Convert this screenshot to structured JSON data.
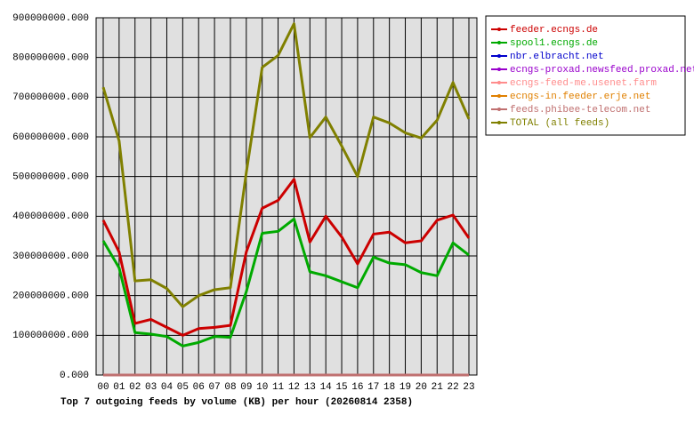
{
  "chart_data": {
    "type": "line",
    "title": "Top 7 outgoing feeds by volume (KB) per hour (20260814 2358)",
    "categories": [
      "00",
      "01",
      "02",
      "03",
      "04",
      "05",
      "06",
      "07",
      "08",
      "09",
      "10",
      "11",
      "12",
      "13",
      "14",
      "15",
      "16",
      "17",
      "18",
      "19",
      "20",
      "21",
      "22",
      "23"
    ],
    "series": [
      {
        "name": "feeder.ecngs.de",
        "color": "#cc0000",
        "values": [
          390000000,
          310000000,
          130000000,
          140000000,
          120000000,
          100000000,
          117000000,
          120000000,
          125000000,
          310000000,
          420000000,
          440000000,
          493000000,
          335000000,
          400000000,
          348000000,
          280000000,
          355000000,
          360000000,
          333000000,
          338000000,
          390000000,
          403000000,
          345000000
        ]
      },
      {
        "name": "spool1.ecngs.de",
        "color": "#00aa00",
        "values": [
          338000000,
          270000000,
          107000000,
          103000000,
          97000000,
          73000000,
          82000000,
          97000000,
          95000000,
          210000000,
          357000000,
          362000000,
          393000000,
          260000000,
          250000000,
          235000000,
          220000000,
          297000000,
          282000000,
          278000000,
          258000000,
          250000000,
          333000000,
          302000000
        ]
      },
      {
        "name": "nbr.elbracht.net",
        "color": "#0000cc",
        "values": [
          0,
          0,
          0,
          0,
          0,
          0,
          0,
          0,
          0,
          0,
          0,
          0,
          0,
          0,
          0,
          0,
          0,
          0,
          0,
          0,
          0,
          0,
          0,
          0
        ]
      },
      {
        "name": "ecngs-proxad.newsfeed.proxad.net",
        "color": "#9900cc",
        "values": [
          0,
          0,
          0,
          0,
          0,
          0,
          0,
          0,
          0,
          0,
          0,
          0,
          0,
          0,
          0,
          0,
          0,
          0,
          0,
          0,
          0,
          0,
          0,
          0
        ]
      },
      {
        "name": "ecngs-feed-me.usenet.farm",
        "color": "#ff8c8c",
        "values": [
          0,
          0,
          0,
          0,
          0,
          0,
          0,
          0,
          0,
          0,
          0,
          0,
          0,
          0,
          0,
          0,
          0,
          0,
          0,
          0,
          0,
          0,
          0,
          0
        ]
      },
      {
        "name": "ecngs-in.feeder.erje.net",
        "color": "#e08000",
        "values": [
          0,
          0,
          0,
          0,
          0,
          0,
          0,
          0,
          0,
          0,
          0,
          0,
          0,
          0,
          0,
          0,
          0,
          0,
          0,
          0,
          0,
          0,
          0,
          0
        ]
      },
      {
        "name": "feeds.phibee-telecom.net",
        "color": "#c07070",
        "values": [
          0,
          0,
          0,
          0,
          0,
          0,
          0,
          0,
          0,
          0,
          0,
          0,
          0,
          0,
          0,
          0,
          0,
          0,
          0,
          0,
          0,
          0,
          0,
          0
        ]
      },
      {
        "name": "TOTAL (all feeds)",
        "color": "#808000",
        "values": [
          725000000,
          590000000,
          237000000,
          240000000,
          218000000,
          172000000,
          200000000,
          215000000,
          220000000,
          510000000,
          775000000,
          805000000,
          885000000,
          598000000,
          650000000,
          577000000,
          500000000,
          650000000,
          635000000,
          610000000,
          597000000,
          642000000,
          737000000,
          645000000
        ]
      }
    ],
    "ylim": [
      0,
      900000000
    ],
    "yticks": [
      {
        "value": 0,
        "label": "0.000"
      },
      {
        "value": 100000000,
        "label": "100000000.000"
      },
      {
        "value": 200000000,
        "label": "200000000.000"
      },
      {
        "value": 300000000,
        "label": "300000000.000"
      },
      {
        "value": 400000000,
        "label": "400000000.000"
      },
      {
        "value": 500000000,
        "label": "500000000.000"
      },
      {
        "value": 600000000,
        "label": "600000000.000"
      },
      {
        "value": 700000000,
        "label": "700000000.000"
      },
      {
        "value": 800000000,
        "label": "800000000.000"
      },
      {
        "value": 900000000,
        "label": "900000000.000"
      }
    ],
    "grid": true,
    "legend": "right"
  }
}
